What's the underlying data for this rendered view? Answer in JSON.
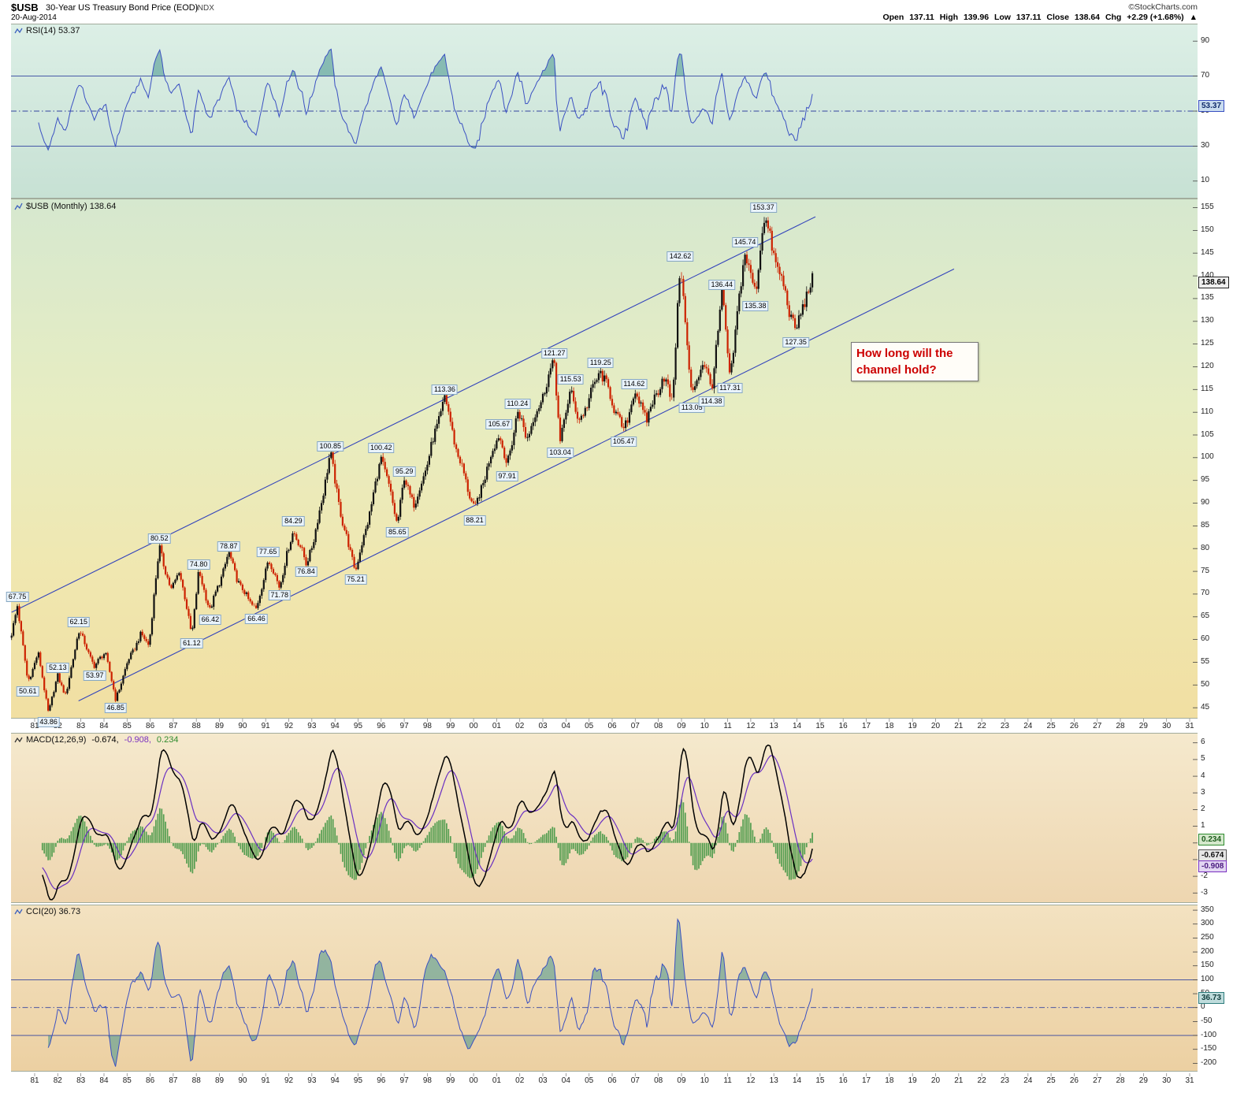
{
  "header": {
    "symbol": "$USB",
    "title": "30-Year US Treasury Bond Price (EOD)",
    "exchange": "INDX",
    "date": "20-Aug-2014",
    "source": "©StockCharts.com",
    "quote": {
      "open_label": "Open",
      "open": "137.11",
      "high_label": "High",
      "high": "139.96",
      "low_label": "Low",
      "low": "137.11",
      "close_label": "Close",
      "close": "138.64",
      "chg_label": "Chg",
      "chg": "+2.29 (+1.68%)",
      "direction": "▲"
    }
  },
  "panels": {
    "rsi": {
      "label": "RSI(14) 53.37",
      "badge": "53.37"
    },
    "price": {
      "label": "$USB (Monthly) 138.64",
      "badge": "138.64"
    },
    "macd": {
      "label": "MACD(12,26,9)",
      "v1": "-0.674,",
      "v2": "-0.908,",
      "v3": "0.234",
      "badges": [
        "0.234",
        "-0.674",
        "-0.908"
      ]
    },
    "cci": {
      "label": "CCI(20) 36.73",
      "badge": "36.73"
    }
  },
  "chart_data": {
    "type": "candlestick",
    "title": "$USB 30-Year US Treasury Bond Price (EOD) INDX",
    "timeframe": "Monthly",
    "date": "20-Aug-2014",
    "last_quote": {
      "open": 137.11,
      "high": 139.96,
      "low": 137.11,
      "close": 138.64,
      "change": "+2.29",
      "change_pct": "+1.68%"
    },
    "x_axis": {
      "start_year": 1981,
      "labels": [
        "81",
        "82",
        "83",
        "84",
        "85",
        "86",
        "87",
        "88",
        "89",
        "90",
        "91",
        "92",
        "93",
        "94",
        "95",
        "96",
        "97",
        "98",
        "99",
        "00",
        "01",
        "02",
        "03",
        "04",
        "05",
        "06",
        "07",
        "08",
        "09",
        "10",
        "11",
        "12",
        "13",
        "14",
        "15",
        "16",
        "17",
        "18",
        "19",
        "20",
        "21",
        "22",
        "23",
        "24",
        "25",
        "26",
        "27",
        "28",
        "29",
        "30",
        "31"
      ]
    },
    "price_axis": {
      "range": [
        45,
        155
      ],
      "ticks": [
        155,
        150,
        145,
        140,
        135,
        130,
        125,
        120,
        115,
        110,
        105,
        100,
        95,
        90,
        85,
        80,
        75,
        70,
        65,
        60,
        55,
        50,
        45
      ]
    },
    "price_anchors": [
      [
        1980.0,
        61
      ],
      [
        1980.25,
        67.75
      ],
      [
        1980.7,
        50.61
      ],
      [
        1981.15,
        57
      ],
      [
        1981.6,
        43.86
      ],
      [
        1982.0,
        52.13
      ],
      [
        1982.35,
        47.5
      ],
      [
        1982.9,
        62.15
      ],
      [
        1983.6,
        53.97
      ],
      [
        1984.05,
        57.5
      ],
      [
        1984.5,
        46.85
      ],
      [
        1985.1,
        56
      ],
      [
        1985.6,
        61
      ],
      [
        1985.95,
        59
      ],
      [
        1986.4,
        80.52
      ],
      [
        1986.9,
        70.5
      ],
      [
        1987.25,
        75.5
      ],
      [
        1987.8,
        61.12
      ],
      [
        1988.1,
        74.8
      ],
      [
        1988.6,
        66.42
      ],
      [
        1989.4,
        78.87
      ],
      [
        1989.9,
        71.5
      ],
      [
        1990.6,
        66.46
      ],
      [
        1991.1,
        77.65
      ],
      [
        1991.6,
        71.78
      ],
      [
        1992.2,
        84.29
      ],
      [
        1992.75,
        76.84
      ],
      [
        1993.1,
        82
      ],
      [
        1993.8,
        100.85
      ],
      [
        1994.35,
        85
      ],
      [
        1994.9,
        75.21
      ],
      [
        1995.6,
        90
      ],
      [
        1996.0,
        100.42
      ],
      [
        1996.7,
        85.65
      ],
      [
        1997.0,
        95.29
      ],
      [
        1997.45,
        89.5
      ],
      [
        1998.0,
        99
      ],
      [
        1998.75,
        113.36
      ],
      [
        1999.3,
        101
      ],
      [
        2000.05,
        88.21
      ],
      [
        2000.6,
        98
      ],
      [
        2001.1,
        105.67
      ],
      [
        2001.45,
        97.91
      ],
      [
        2001.9,
        110.24
      ],
      [
        2002.3,
        104.5
      ],
      [
        2002.8,
        111
      ],
      [
        2003.5,
        121.27
      ],
      [
        2003.75,
        103.04
      ],
      [
        2004.2,
        115.53
      ],
      [
        2004.55,
        107.5
      ],
      [
        2005.5,
        119.25
      ],
      [
        2006.5,
        105.47
      ],
      [
        2006.95,
        114.62
      ],
      [
        2007.5,
        108.5
      ],
      [
        2008.2,
        118
      ],
      [
        2008.6,
        112.5
      ],
      [
        2008.95,
        142.62
      ],
      [
        2009.45,
        113.05
      ],
      [
        2009.95,
        122
      ],
      [
        2010.3,
        114.38
      ],
      [
        2010.75,
        136.44
      ],
      [
        2011.1,
        117.31
      ],
      [
        2011.75,
        145.74
      ],
      [
        2012.2,
        135.38
      ],
      [
        2012.55,
        153.37
      ],
      [
        2013.1,
        143
      ],
      [
        2013.55,
        135
      ],
      [
        2013.95,
        127.35
      ],
      [
        2014.3,
        134.5
      ],
      [
        2014.65,
        138.64
      ]
    ],
    "annotations": [
      {
        "t": "67.75",
        "x": 1980.25,
        "v": 67.75,
        "p": "a"
      },
      {
        "t": "50.61",
        "x": 1980.7,
        "v": 50.61,
        "p": "b"
      },
      {
        "t": "43.86",
        "x": 1981.6,
        "v": 43.86,
        "p": "b"
      },
      {
        "t": "52.13",
        "x": 1982.0,
        "v": 52.13,
        "p": "a"
      },
      {
        "t": "62.15",
        "x": 1982.9,
        "v": 62.15,
        "p": "a"
      },
      {
        "t": "53.97",
        "x": 1983.6,
        "v": 53.97,
        "p": "b"
      },
      {
        "t": "46.85",
        "x": 1984.5,
        "v": 46.85,
        "p": "b"
      },
      {
        "t": "80.52",
        "x": 1986.4,
        "v": 80.52,
        "p": "a"
      },
      {
        "t": "61.12",
        "x": 1987.8,
        "v": 61.12,
        "p": "b"
      },
      {
        "t": "74.80",
        "x": 1988.1,
        "v": 74.8,
        "p": "a"
      },
      {
        "t": "66.42",
        "x": 1988.6,
        "v": 66.42,
        "p": "b"
      },
      {
        "t": "78.87",
        "x": 1989.4,
        "v": 78.87,
        "p": "a"
      },
      {
        "t": "66.46",
        "x": 1990.6,
        "v": 66.46,
        "p": "b"
      },
      {
        "t": "77.65",
        "x": 1991.1,
        "v": 77.65,
        "p": "a"
      },
      {
        "t": "71.78",
        "x": 1991.6,
        "v": 71.78,
        "p": "b"
      },
      {
        "t": "84.29",
        "x": 1992.2,
        "v": 84.29,
        "p": "a"
      },
      {
        "t": "76.84",
        "x": 1992.75,
        "v": 76.84,
        "p": "b"
      },
      {
        "t": "100.85",
        "x": 1993.8,
        "v": 100.85,
        "p": "a"
      },
      {
        "t": "75.21",
        "x": 1994.9,
        "v": 75.21,
        "p": "b"
      },
      {
        "t": "100.42",
        "x": 1996.0,
        "v": 100.42,
        "p": "a"
      },
      {
        "t": "85.65",
        "x": 1996.7,
        "v": 85.65,
        "p": "b"
      },
      {
        "t": "95.29",
        "x": 1997.0,
        "v": 95.29,
        "p": "a"
      },
      {
        "t": "113.36",
        "x": 1998.75,
        "v": 113.36,
        "p": "a"
      },
      {
        "t": "88.21",
        "x": 2000.05,
        "v": 88.21,
        "p": "b"
      },
      {
        "t": "105.67",
        "x": 2001.1,
        "v": 105.67,
        "p": "a"
      },
      {
        "t": "97.91",
        "x": 2001.45,
        "v": 97.91,
        "p": "b"
      },
      {
        "t": "110.24",
        "x": 2001.9,
        "v": 110.24,
        "p": "a"
      },
      {
        "t": "121.27",
        "x": 2003.5,
        "v": 121.27,
        "p": "a"
      },
      {
        "t": "103.04",
        "x": 2003.75,
        "v": 103.04,
        "p": "b"
      },
      {
        "t": "115.53",
        "x": 2004.2,
        "v": 115.53,
        "p": "a"
      },
      {
        "t": "119.25",
        "x": 2005.5,
        "v": 119.25,
        "p": "a"
      },
      {
        "t": "105.47",
        "x": 2006.5,
        "v": 105.47,
        "p": "b"
      },
      {
        "t": "114.62",
        "x": 2006.95,
        "v": 114.62,
        "p": "a"
      },
      {
        "t": "142.62",
        "x": 2008.95,
        "v": 142.62,
        "p": "a"
      },
      {
        "t": "113.05",
        "x": 2009.45,
        "v": 113.05,
        "p": "b"
      },
      {
        "t": "114.38",
        "x": 2010.3,
        "v": 114.38,
        "p": "b"
      },
      {
        "t": "136.44",
        "x": 2010.75,
        "v": 136.44,
        "p": "a"
      },
      {
        "t": "117.31",
        "x": 2011.1,
        "v": 117.31,
        "p": "b"
      },
      {
        "t": "145.74",
        "x": 2011.75,
        "v": 145.74,
        "p": "a"
      },
      {
        "t": "135.38",
        "x": 2012.2,
        "v": 135.38,
        "p": "b"
      },
      {
        "t": "153.37",
        "x": 2012.55,
        "v": 153.37,
        "p": "a"
      },
      {
        "t": "127.35",
        "x": 2013.95,
        "v": 127.35,
        "p": "b"
      }
    ],
    "channel": {
      "upper": [
        [
          1980.0,
          66
        ],
        [
          2014.8,
          153
        ]
      ],
      "lower": [
        [
          1982.9,
          46.5
        ],
        [
          2020.8,
          141.5
        ]
      ]
    },
    "callout": {
      "text": "How long will the channel hold?",
      "color": "#cc0000"
    },
    "indicators": [
      {
        "name": "RSI",
        "params": "14",
        "current": 53.37,
        "yticks": [
          90,
          70,
          50,
          30,
          10
        ],
        "hlines_solid": [
          70,
          30
        ],
        "hlines_dash": [
          50
        ]
      },
      {
        "name": "MACD",
        "params": "12,26,9",
        "current": [
          -0.674,
          -0.908,
          0.234
        ],
        "yticks": [
          6,
          5,
          4,
          3,
          2,
          1,
          0,
          -1,
          -2,
          -3
        ]
      },
      {
        "name": "CCI",
        "params": "20",
        "current": 36.73,
        "yticks": [
          350,
          300,
          250,
          200,
          150,
          100,
          50,
          0,
          -50,
          -100,
          -150,
          -200
        ],
        "hlines_solid": [
          100,
          -100
        ],
        "hlines_dash": [
          0
        ]
      }
    ],
    "colors": {
      "candle_up": "#111111",
      "candle_down": "#cc2200",
      "rsi_line": "#3a50c2",
      "cci_line": "#3a50c2",
      "macd_line": "#000000",
      "signal_line": "#6a2fc2",
      "histogram": "#4a9a4a",
      "channel_line": "#3344bb",
      "overbought_fill": "#46948c"
    }
  }
}
